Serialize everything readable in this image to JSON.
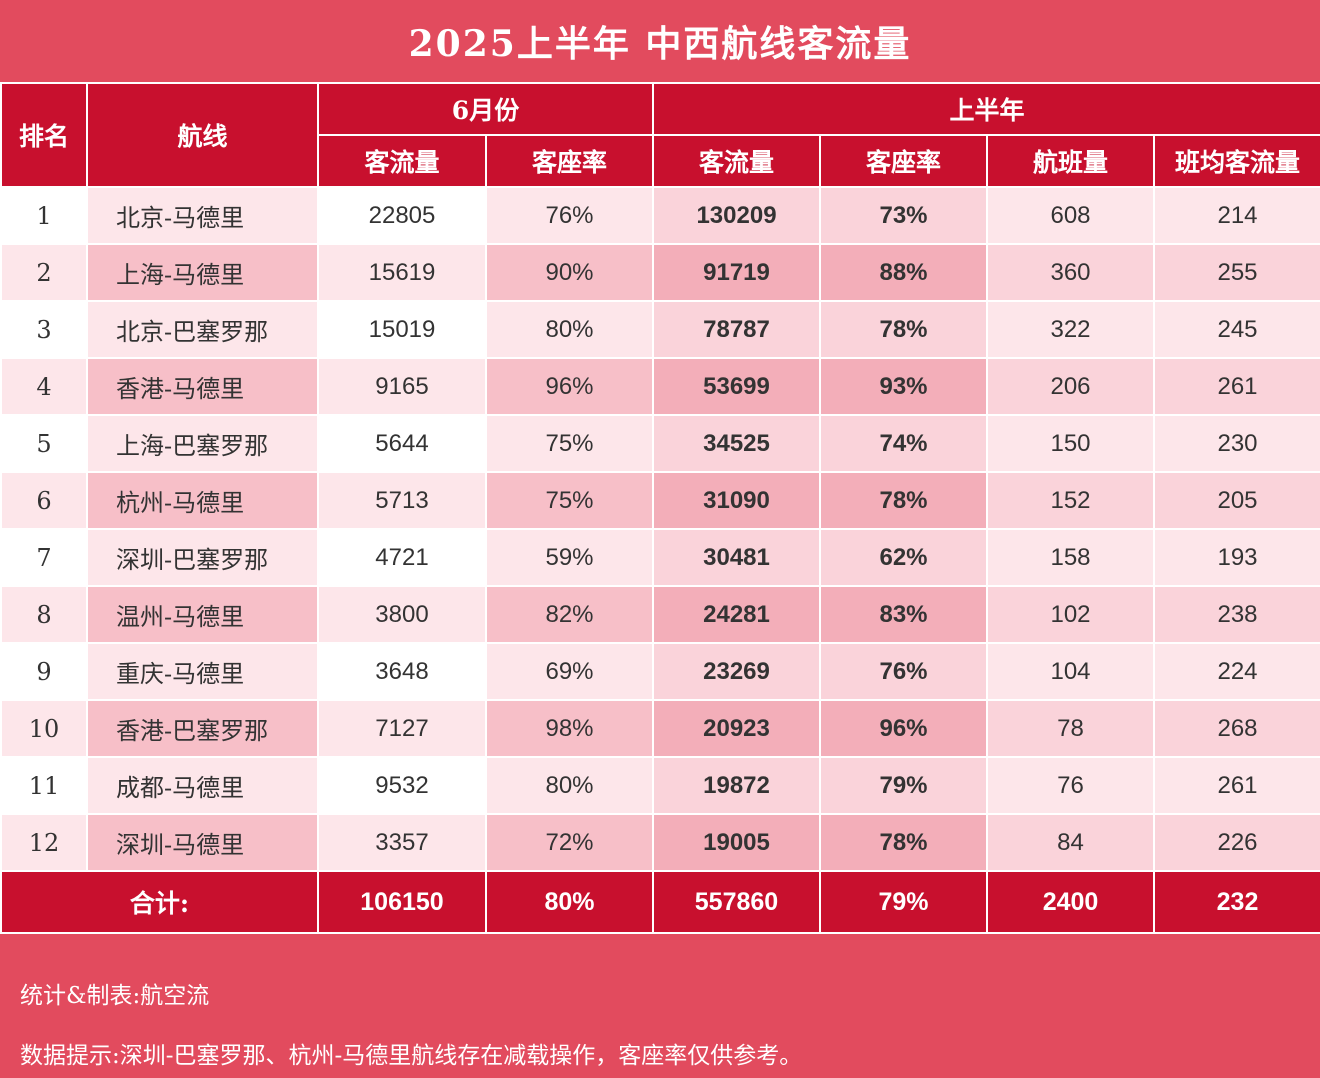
{
  "title": "2025上半年 中西航线客流量",
  "headers": {
    "rank": "排名",
    "route": "航线",
    "june_group": "6月份",
    "h1_group": "上半年",
    "june_pax": "客流量",
    "june_load": "客座率",
    "h1_pax": "客流量",
    "h1_load": "客座率",
    "h1_flights": "航班量",
    "h1_avg": "班均客流量"
  },
  "rows": [
    {
      "rank": "1",
      "route": "北京-马德里",
      "june_pax": "22805",
      "june_load": "76%",
      "h1_pax": "130209",
      "h1_load": "73%",
      "flights": "608",
      "avg": "214"
    },
    {
      "rank": "2",
      "route": "上海-马德里",
      "june_pax": "15619",
      "june_load": "90%",
      "h1_pax": "91719",
      "h1_load": "88%",
      "flights": "360",
      "avg": "255"
    },
    {
      "rank": "3",
      "route": "北京-巴塞罗那",
      "june_pax": "15019",
      "june_load": "80%",
      "h1_pax": "78787",
      "h1_load": "78%",
      "flights": "322",
      "avg": "245"
    },
    {
      "rank": "4",
      "route": "香港-马德里",
      "june_pax": "9165",
      "june_load": "96%",
      "h1_pax": "53699",
      "h1_load": "93%",
      "flights": "206",
      "avg": "261"
    },
    {
      "rank": "5",
      "route": "上海-巴塞罗那",
      "june_pax": "5644",
      "june_load": "75%",
      "h1_pax": "34525",
      "h1_load": "74%",
      "flights": "150",
      "avg": "230"
    },
    {
      "rank": "6",
      "route": "杭州-马德里",
      "june_pax": "5713",
      "june_load": "75%",
      "h1_pax": "31090",
      "h1_load": "78%",
      "flights": "152",
      "avg": "205"
    },
    {
      "rank": "7",
      "route": "深圳-巴塞罗那",
      "june_pax": "4721",
      "june_load": "59%",
      "h1_pax": "30481",
      "h1_load": "62%",
      "flights": "158",
      "avg": "193"
    },
    {
      "rank": "8",
      "route": "温州-马德里",
      "june_pax": "3800",
      "june_load": "82%",
      "h1_pax": "24281",
      "h1_load": "83%",
      "flights": "102",
      "avg": "238"
    },
    {
      "rank": "9",
      "route": "重庆-马德里",
      "june_pax": "3648",
      "june_load": "69%",
      "h1_pax": "23269",
      "h1_load": "76%",
      "flights": "104",
      "avg": "224"
    },
    {
      "rank": "10",
      "route": "香港-巴塞罗那",
      "june_pax": "7127",
      "june_load": "98%",
      "h1_pax": "20923",
      "h1_load": "96%",
      "flights": "78",
      "avg": "268"
    },
    {
      "rank": "11",
      "route": "成都-马德里",
      "june_pax": "9532",
      "june_load": "80%",
      "h1_pax": "19872",
      "h1_load": "79%",
      "flights": "76",
      "avg": "261"
    },
    {
      "rank": "12",
      "route": "深圳-马德里",
      "june_pax": "3357",
      "june_load": "72%",
      "h1_pax": "19005",
      "h1_load": "78%",
      "flights": "84",
      "avg": "226"
    }
  ],
  "total": {
    "label": "合计:",
    "june_pax": "106150",
    "june_load": "80%",
    "h1_pax": "557860",
    "h1_load": "79%",
    "flights": "2400",
    "avg": "232"
  },
  "footer": {
    "source": "统计&制表:航空流",
    "note": "数据提示:深圳-巴塞罗那、杭州-马德里航线存在减载操作，客座率仅供参考。"
  },
  "colors": {
    "background": "#e24b5e",
    "header": "#c8102e",
    "row_light": "#fde6ea",
    "row_dark": "#f7bfc8"
  }
}
